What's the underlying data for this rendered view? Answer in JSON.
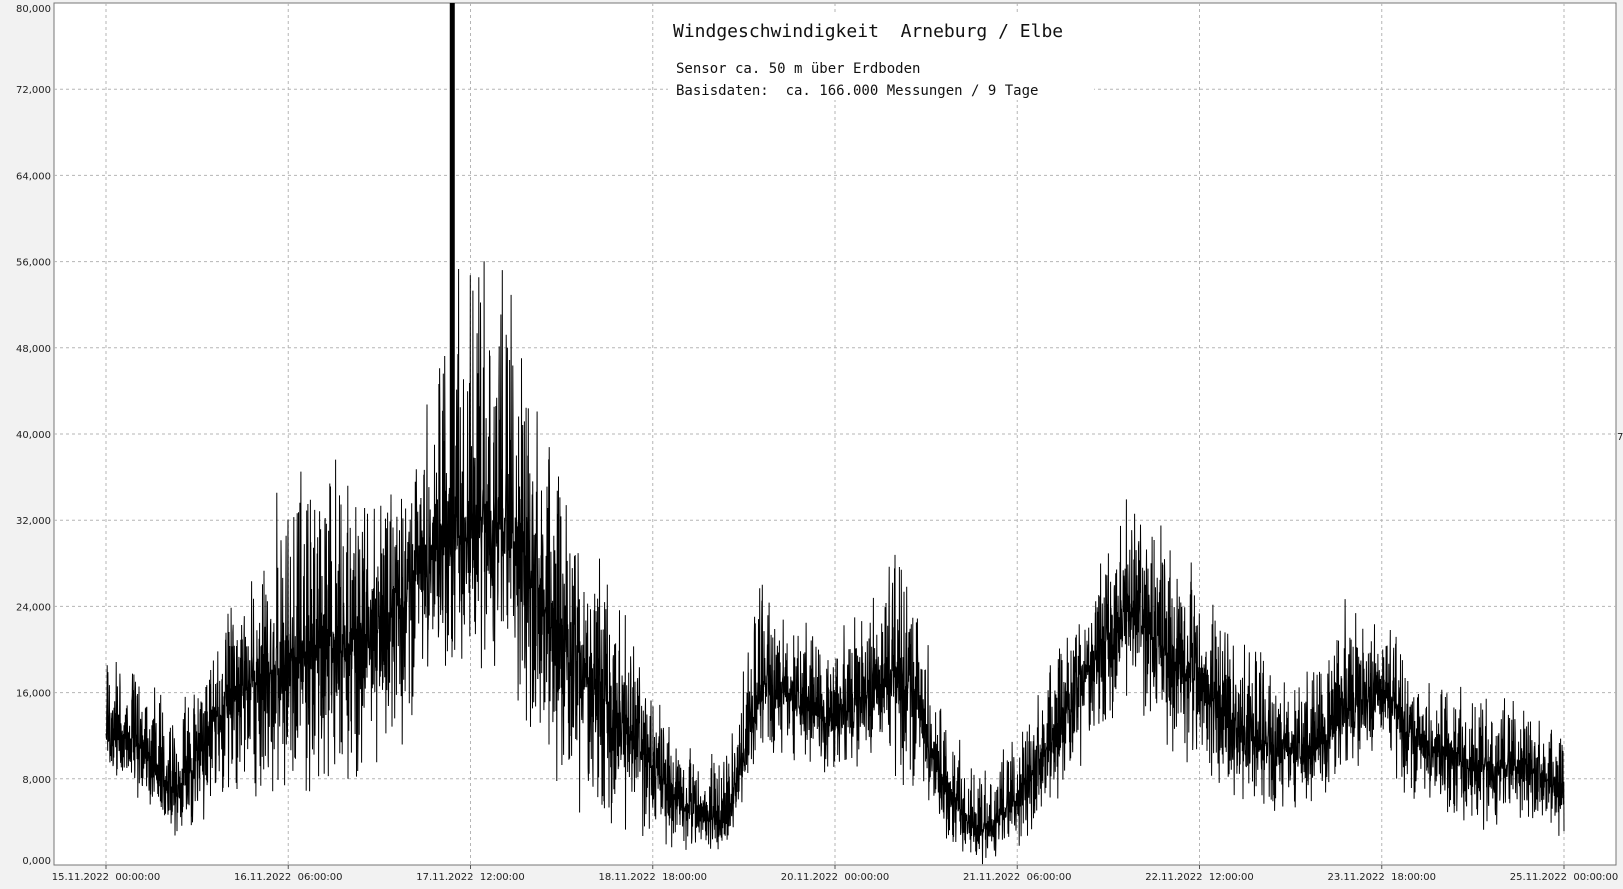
{
  "chart_data": {
    "type": "line",
    "title": "Windgeschwindigkeit  Arneburg / Elbe",
    "subtitle_lines": [
      "Sensor ca. 50 m über Erdboden",
      "Basisdaten:  ca. 166.000 Messungen / 9 Tage"
    ],
    "xlabel": "",
    "ylabel": "",
    "ylim": [
      0,
      80
    ],
    "y_ticks": [
      "0,000",
      "8,000",
      "16,000",
      "24,000",
      "32,000",
      "40,000",
      "48,000",
      "56,000",
      "64,000",
      "72,000",
      "80,000"
    ],
    "x_range": [
      "15.11.2022 00:00:00",
      "25.11.2022 00:00:00"
    ],
    "x_ticks": [
      "15.11.2022  00:00:00",
      "16.11.2022  06:00:00",
      "17.11.2022  12:00:00",
      "18.11.2022  18:00:00",
      "20.11.2022  00:00:00",
      "21.11.2022  06:00:00",
      "22.11.2022  12:00:00",
      "23.11.2022  18:00:00",
      "25.11.2022  00:00:00"
    ],
    "right_edge_label": "7",
    "grid": true,
    "series_color": "#000000",
    "envelope_hours": [
      0,
      6,
      12,
      18,
      24,
      30,
      36,
      42,
      48,
      54,
      60,
      66,
      72,
      78,
      84,
      90,
      96,
      102,
      108,
      114,
      120,
      126,
      132,
      138,
      144,
      150,
      156,
      162,
      168,
      174,
      180,
      186,
      192,
      198,
      204,
      210,
      216,
      222,
      228,
      234,
      240
    ],
    "envelope_center": [
      13,
      11,
      6,
      14,
      17,
      19,
      21,
      20,
      24,
      29,
      32,
      31,
      24,
      17,
      14,
      9,
      5,
      4,
      17,
      15,
      13,
      16,
      17,
      7,
      3,
      6,
      12,
      18,
      24,
      20,
      17,
      13,
      11,
      10,
      14,
      16,
      11,
      10,
      9,
      9,
      7
    ],
    "envelope_max": [
      20,
      18,
      15,
      23,
      28,
      40,
      39,
      36,
      35,
      47,
      61,
      55,
      42,
      32,
      28,
      17,
      11,
      11,
      27,
      23,
      21,
      27,
      31,
      14,
      9,
      12,
      20,
      26,
      36,
      33,
      27,
      22,
      19,
      18,
      25,
      24,
      18,
      17,
      16,
      15,
      12
    ],
    "envelope_min": [
      8,
      5,
      2,
      5,
      4,
      6,
      6,
      6,
      10,
      16,
      19,
      16,
      8,
      4,
      3,
      1,
      1,
      1,
      10,
      8,
      7,
      8,
      7,
      2,
      0,
      1,
      5,
      10,
      15,
      10,
      8,
      5,
      4,
      4,
      7,
      9,
      5,
      4,
      3,
      4,
      2
    ],
    "spike": {
      "hour": 57,
      "value": 80
    }
  }
}
